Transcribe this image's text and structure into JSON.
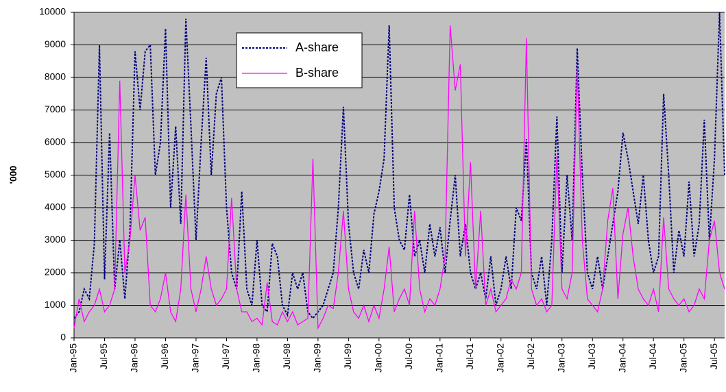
{
  "chart_data": {
    "type": "line",
    "y_label": "'000",
    "categories": [
      "Jan-95",
      null,
      null,
      null,
      null,
      null,
      "Jul-95",
      null,
      null,
      null,
      null,
      null,
      "Jan-96",
      null,
      null,
      null,
      null,
      null,
      "Jul-96",
      null,
      null,
      null,
      null,
      null,
      "Jan-97",
      null,
      null,
      null,
      null,
      null,
      "Jul-97",
      null,
      null,
      null,
      null,
      null,
      "Jan-98",
      null,
      null,
      null,
      null,
      null,
      "Jul-98",
      null,
      null,
      null,
      null,
      null,
      "Jan-99",
      null,
      null,
      null,
      null,
      null,
      "Jul-99",
      null,
      null,
      null,
      null,
      null,
      "Jan-00",
      null,
      null,
      null,
      null,
      null,
      "Jul-00",
      null,
      null,
      null,
      null,
      null,
      "Jan-01",
      null,
      null,
      null,
      null,
      null,
      "Jul-01",
      null,
      null,
      null,
      null,
      null,
      "Jan-02",
      null,
      null,
      null,
      null,
      null,
      "Jul-02",
      null,
      null,
      null,
      null,
      null,
      "Jan-03",
      null,
      null,
      null,
      null,
      null,
      "Jul-03",
      null,
      null,
      null,
      null,
      null,
      "Jan-04",
      null,
      null,
      null,
      null,
      null,
      "Jul-04",
      null,
      null,
      null,
      null,
      null,
      "Jan-05",
      null,
      null,
      null,
      null,
      null,
      "Jul-05",
      null,
      null
    ],
    "series": [
      {
        "name": "A-share",
        "color": "#000080",
        "dashed": true,
        "values": [
          600,
          800,
          1500,
          1200,
          2900,
          9000,
          1800,
          6300,
          1500,
          3000,
          1200,
          3300,
          8800,
          7000,
          8800,
          9000,
          5000,
          6000,
          9500,
          4000,
          6500,
          3500,
          9800,
          6500,
          3000,
          6000,
          8600,
          5000,
          7500,
          8000,
          4000,
          2000,
          1500,
          4500,
          1500,
          1000,
          3000,
          1000,
          800,
          2900,
          2500,
          1000,
          700,
          2000,
          1500,
          2000,
          800,
          600,
          800,
          1000,
          1500,
          2000,
          4000,
          7100,
          3500,
          2000,
          1500,
          2700,
          2000,
          3800,
          4500,
          5500,
          9600,
          4000,
          3000,
          2700,
          4400,
          2500,
          3000,
          2000,
          3500,
          2500,
          3400,
          2000,
          3600,
          5000,
          2500,
          3500,
          2000,
          1500,
          2000,
          1200,
          2500,
          1000,
          1500,
          2500,
          1500,
          4000,
          3600,
          6100,
          2000,
          1500,
          2500,
          1000,
          3000,
          6800,
          2000,
          5000,
          3000,
          8900,
          5000,
          2000,
          1500,
          2500,
          1500,
          2500,
          3500,
          4500,
          6300,
          5500,
          4500,
          3500,
          5000,
          3000,
          2000,
          2500,
          7500,
          5000,
          2000,
          3300,
          2500,
          4800,
          2500,
          3500,
          6700,
          3000,
          5500,
          10000,
          5000
        ]
      },
      {
        "name": "B-share",
        "color": "#ff00ff",
        "dashed": false,
        "values": [
          300,
          1200,
          500,
          800,
          1000,
          1500,
          800,
          1000,
          1500,
          7900,
          2000,
          3000,
          5000,
          3300,
          3700,
          1000,
          800,
          1200,
          2000,
          800,
          500,
          1500,
          4400,
          1500,
          800,
          1500,
          2500,
          1500,
          1000,
          1200,
          1500,
          4300,
          1500,
          800,
          800,
          500,
          600,
          400,
          1700,
          500,
          400,
          800,
          500,
          800,
          400,
          500,
          600,
          5500,
          300,
          600,
          1000,
          900,
          2000,
          3900,
          1500,
          800,
          600,
          1000,
          500,
          1000,
          600,
          1500,
          2800,
          800,
          1200,
          1500,
          1000,
          3900,
          1500,
          800,
          1200,
          1000,
          1500,
          2500,
          9600,
          7600,
          8400,
          2500,
          5400,
          1500,
          3900,
          1000,
          1500,
          800,
          1000,
          1200,
          1800,
          1500,
          2000,
          9200,
          1500,
          1000,
          1200,
          800,
          1000,
          5600,
          1500,
          1200,
          2000,
          8300,
          3000,
          1200,
          1000,
          800,
          1500,
          3600,
          4600,
          1200,
          3200,
          4000,
          2500,
          1500,
          1200,
          1000,
          1500,
          800,
          3700,
          1500,
          1200,
          1000,
          1200,
          800,
          1000,
          1500,
          1200,
          3000,
          3600,
          2000,
          1500
        ]
      }
    ],
    "ylim": [
      0,
      10000
    ],
    "yticks": [
      0,
      1000,
      2000,
      3000,
      4000,
      5000,
      6000,
      7000,
      8000,
      9000,
      10000
    ],
    "grid": true,
    "plot_background": "#c0c0c0",
    "legend": "top"
  }
}
